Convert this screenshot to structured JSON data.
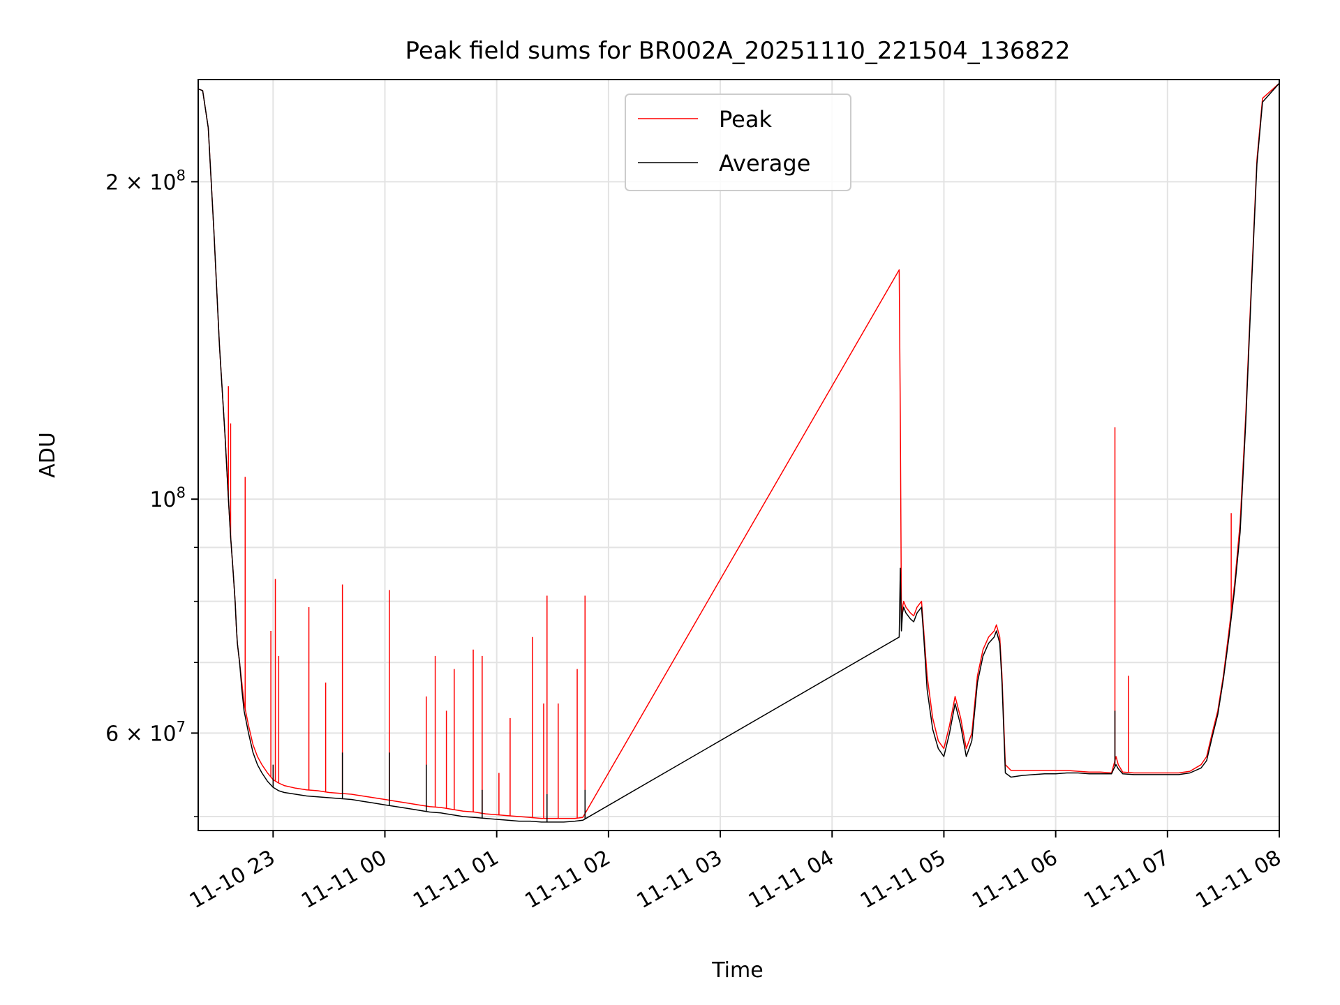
{
  "chart_data": {
    "type": "line",
    "title": "Peak field sums for BR002A_20251110_221504_136822",
    "xlabel": "Time",
    "ylabel": "ADU",
    "yscale": "log",
    "ylim": [
      48500000,
      250000000
    ],
    "x_unit": "hours since 2025-11-10 22:00",
    "xlim": [
      0.33,
      10.0
    ],
    "grid": true,
    "legend_position": "upper center",
    "x_ticks": [
      {
        "value": 1,
        "label": "11-10 23"
      },
      {
        "value": 2,
        "label": "11-11 00"
      },
      {
        "value": 3,
        "label": "11-11 01"
      },
      {
        "value": 4,
        "label": "11-11 02"
      },
      {
        "value": 5,
        "label": "11-11 03"
      },
      {
        "value": 6,
        "label": "11-11 04"
      },
      {
        "value": 7,
        "label": "11-11 05"
      },
      {
        "value": 8,
        "label": "11-11 06"
      },
      {
        "value": 9,
        "label": "11-11 07"
      },
      {
        "value": 10,
        "label": "11-11 08"
      }
    ],
    "y_major_ticks": [
      {
        "value": 100000000,
        "base": "10",
        "exp": "8"
      },
      {
        "value": 200000000,
        "base": "2 × 10",
        "exp": "8"
      },
      {
        "value": 60000000,
        "base": "6 × 10",
        "exp": "7"
      }
    ],
    "y_minor_ticks": [
      50000000,
      70000000,
      80000000,
      90000000,
      300000000
    ],
    "series": [
      {
        "name": "Peak",
        "color": "#ff0000",
        "x": [
          0.33,
          0.37,
          0.42,
          0.47,
          0.52,
          0.57,
          0.6,
          0.62,
          0.64,
          0.66,
          0.67,
          0.68,
          0.7,
          0.72,
          0.74,
          0.78,
          0.82,
          0.86,
          0.9,
          0.95,
          1.0,
          1.05,
          1.1,
          1.2,
          1.3,
          1.4,
          1.5,
          1.6,
          1.7,
          1.8,
          1.9,
          2.0,
          2.1,
          2.2,
          2.3,
          2.4,
          2.5,
          2.6,
          2.7,
          2.8,
          2.9,
          3.0,
          3.1,
          3.2,
          3.3,
          3.4,
          3.5,
          3.6,
          3.7,
          3.77,
          6.6,
          6.61,
          6.62,
          6.63,
          6.64,
          6.66,
          6.7,
          6.73,
          6.76,
          6.8,
          6.82,
          6.85,
          6.9,
          6.95,
          7.0,
          7.05,
          7.1,
          7.15,
          7.2,
          7.25,
          7.3,
          7.35,
          7.4,
          7.45,
          7.47,
          7.5,
          7.52,
          7.55,
          7.6,
          7.7,
          7.8,
          7.9,
          8.0,
          8.1,
          8.2,
          8.3,
          8.4,
          8.5,
          8.52,
          8.54,
          8.56,
          8.6,
          8.7,
          8.8,
          8.9,
          9.0,
          9.1,
          9.2,
          9.3,
          9.35,
          9.4,
          9.45,
          9.5,
          9.55,
          9.6,
          9.65,
          9.7,
          9.75,
          9.8,
          9.85,
          10.0
        ],
        "y": [
          245000000,
          244000000,
          225000000,
          180000000,
          140000000,
          115000000,
          100000000,
          92000000,
          86000000,
          80000000,
          76000000,
          73000000,
          70000000,
          67000000,
          64000000,
          61000000,
          58500000,
          57000000,
          56000000,
          55000000,
          54200000,
          53800000,
          53500000,
          53200000,
          53000000,
          52900000,
          52700000,
          52600000,
          52500000,
          52300000,
          52100000,
          51900000,
          51700000,
          51500000,
          51300000,
          51100000,
          51000000,
          50800000,
          50600000,
          50500000,
          50300000,
          50200000,
          50100000,
          50000000,
          49900000,
          49800000,
          49800000,
          49800000,
          49800000,
          49900000,
          165000000,
          120000000,
          77000000,
          79000000,
          80000000,
          79000000,
          78000000,
          77500000,
          79000000,
          80000000,
          75000000,
          68000000,
          62000000,
          59000000,
          58000000,
          61000000,
          65000000,
          62000000,
          58000000,
          60000000,
          68000000,
          72000000,
          74000000,
          75000000,
          76000000,
          74000000,
          68000000,
          56000000,
          55300000,
          55300000,
          55300000,
          55300000,
          55300000,
          55300000,
          55200000,
          55100000,
          55100000,
          55000000,
          56000000,
          57000000,
          56000000,
          55100000,
          55000000,
          55000000,
          55000000,
          55000000,
          55000000,
          55200000,
          56000000,
          57000000,
          60000000,
          63000000,
          68000000,
          75000000,
          83000000,
          95000000,
          120000000,
          160000000,
          210000000,
          240000000,
          248000000
        ],
        "spikes": [
          {
            "x": 0.6,
            "y": 128000000
          },
          {
            "x": 0.62,
            "y": 118000000
          },
          {
            "x": 0.75,
            "y": 105000000
          },
          {
            "x": 0.98,
            "y": 75000000
          },
          {
            "x": 1.02,
            "y": 84000000
          },
          {
            "x": 1.05,
            "y": 71000000
          },
          {
            "x": 1.32,
            "y": 79000000
          },
          {
            "x": 1.47,
            "y": 67000000
          },
          {
            "x": 1.62,
            "y": 83000000
          },
          {
            "x": 2.04,
            "y": 82000000
          },
          {
            "x": 2.37,
            "y": 65000000
          },
          {
            "x": 2.45,
            "y": 71000000
          },
          {
            "x": 2.55,
            "y": 63000000
          },
          {
            "x": 2.62,
            "y": 69000000
          },
          {
            "x": 2.79,
            "y": 72000000
          },
          {
            "x": 2.87,
            "y": 71000000
          },
          {
            "x": 3.02,
            "y": 55000000
          },
          {
            "x": 3.12,
            "y": 62000000
          },
          {
            "x": 3.32,
            "y": 74000000
          },
          {
            "x": 3.42,
            "y": 64000000
          },
          {
            "x": 3.45,
            "y": 81000000
          },
          {
            "x": 3.55,
            "y": 64000000
          },
          {
            "x": 3.72,
            "y": 69000000
          },
          {
            "x": 3.79,
            "y": 81000000
          },
          {
            "x": 6.61,
            "y": 120000000
          },
          {
            "x": 8.53,
            "y": 117000000
          },
          {
            "x": 8.65,
            "y": 68000000
          },
          {
            "x": 9.57,
            "y": 97000000
          }
        ]
      },
      {
        "name": "Average",
        "color": "#000000",
        "x": [
          0.33,
          0.37,
          0.42,
          0.47,
          0.52,
          0.57,
          0.6,
          0.62,
          0.64,
          0.66,
          0.67,
          0.68,
          0.7,
          0.72,
          0.74,
          0.78,
          0.82,
          0.86,
          0.9,
          0.95,
          1.0,
          1.05,
          1.1,
          1.2,
          1.3,
          1.4,
          1.5,
          1.6,
          1.7,
          1.8,
          1.9,
          2.0,
          2.1,
          2.2,
          2.3,
          2.4,
          2.5,
          2.6,
          2.7,
          2.8,
          2.9,
          3.0,
          3.1,
          3.2,
          3.3,
          3.4,
          3.5,
          3.6,
          3.7,
          3.77,
          6.6,
          6.61,
          6.62,
          6.63,
          6.64,
          6.66,
          6.7,
          6.73,
          6.76,
          6.8,
          6.82,
          6.85,
          6.9,
          6.95,
          7.0,
          7.05,
          7.1,
          7.15,
          7.2,
          7.25,
          7.3,
          7.35,
          7.4,
          7.45,
          7.47,
          7.5,
          7.52,
          7.55,
          7.6,
          7.7,
          7.8,
          7.9,
          8.0,
          8.1,
          8.2,
          8.3,
          8.4,
          8.5,
          8.52,
          8.54,
          8.56,
          8.6,
          8.7,
          8.8,
          8.9,
          9.0,
          9.1,
          9.2,
          9.3,
          9.35,
          9.4,
          9.45,
          9.5,
          9.55,
          9.6,
          9.65,
          9.7,
          9.75,
          9.8,
          9.85,
          10.0
        ],
        "y": [
          245000000,
          244000000,
          225000000,
          180000000,
          140000000,
          115000000,
          100000000,
          92000000,
          86000000,
          80000000,
          76000000,
          73000000,
          70000000,
          66000000,
          63000000,
          60000000,
          57500000,
          56000000,
          55000000,
          54000000,
          53300000,
          52900000,
          52700000,
          52500000,
          52300000,
          52200000,
          52100000,
          52000000,
          51900000,
          51700000,
          51500000,
          51300000,
          51100000,
          50900000,
          50700000,
          50500000,
          50400000,
          50200000,
          50000000,
          49900000,
          49800000,
          49700000,
          49600000,
          49500000,
          49500000,
          49400000,
          49400000,
          49400000,
          49500000,
          49600000,
          74000000,
          86000000,
          75000000,
          78000000,
          79000000,
          78000000,
          77000000,
          76500000,
          78000000,
          79000000,
          74000000,
          66000000,
          60500000,
          58000000,
          57000000,
          60000000,
          64000000,
          61000000,
          57000000,
          59000000,
          67000000,
          71000000,
          73000000,
          74000000,
          75000000,
          73000000,
          67000000,
          55000000,
          54500000,
          54700000,
          54800000,
          54900000,
          54900000,
          55000000,
          55000000,
          54900000,
          54900000,
          54900000,
          55500000,
          56000000,
          55500000,
          54900000,
          54800000,
          54800000,
          54800000,
          54800000,
          54800000,
          55000000,
          55600000,
          56500000,
          59500000,
          62500000,
          67500000,
          74000000,
          82000000,
          93000000,
          118000000,
          158000000,
          208000000,
          238000000,
          248000000
        ],
        "spikes": [
          {
            "x": 1.0,
            "y": 56000000
          },
          {
            "x": 1.62,
            "y": 57500000
          },
          {
            "x": 2.04,
            "y": 57500000
          },
          {
            "x": 2.37,
            "y": 56000000
          },
          {
            "x": 2.87,
            "y": 53000000
          },
          {
            "x": 3.45,
            "y": 52500000
          },
          {
            "x": 3.79,
            "y": 53000000
          },
          {
            "x": 8.53,
            "y": 63000000
          }
        ]
      }
    ]
  }
}
